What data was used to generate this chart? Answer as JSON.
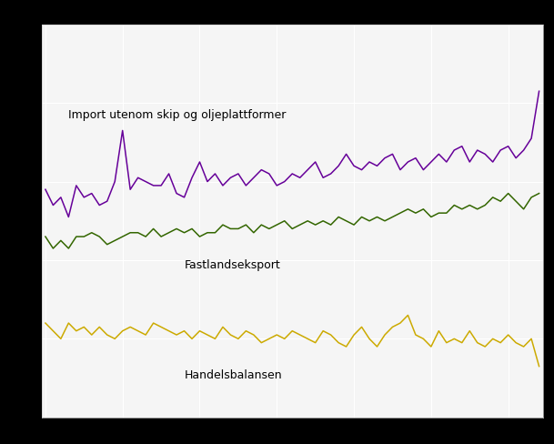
{
  "background_color": "#000000",
  "plot_bg_color": "#f5f5f5",
  "grid_color": "#ffffff",
  "label_import": "Import utenom skip og oljeplattformer",
  "label_export": "Fastlandseksport",
  "label_balance": "Handelsbalansen",
  "color_import": "#660099",
  "color_export": "#336600",
  "color_balance": "#ccaa00",
  "n_points": 65,
  "ylim": [
    0,
    100
  ],
  "import_values": [
    58,
    54,
    56,
    51,
    59,
    56,
    57,
    54,
    55,
    60,
    73,
    58,
    61,
    60,
    59,
    59,
    62,
    57,
    56,
    61,
    65,
    60,
    62,
    59,
    61,
    62,
    59,
    61,
    63,
    62,
    59,
    60,
    62,
    61,
    63,
    65,
    61,
    62,
    64,
    67,
    64,
    63,
    65,
    64,
    66,
    67,
    63,
    65,
    66,
    63,
    65,
    67,
    65,
    68,
    69,
    65,
    68,
    67,
    65,
    68,
    69,
    66,
    68,
    71,
    83
  ],
  "export_values": [
    46,
    43,
    45,
    43,
    46,
    46,
    47,
    46,
    44,
    45,
    46,
    47,
    47,
    46,
    48,
    46,
    47,
    48,
    47,
    48,
    46,
    47,
    47,
    49,
    48,
    48,
    49,
    47,
    49,
    48,
    49,
    50,
    48,
    49,
    50,
    49,
    50,
    49,
    51,
    50,
    49,
    51,
    50,
    51,
    50,
    51,
    52,
    53,
    52,
    53,
    51,
    52,
    52,
    54,
    53,
    54,
    53,
    54,
    56,
    55,
    57,
    55,
    53,
    56,
    57
  ],
  "balance_values": [
    24,
    22,
    20,
    24,
    22,
    23,
    21,
    23,
    21,
    20,
    22,
    23,
    22,
    21,
    24,
    23,
    22,
    21,
    22,
    20,
    22,
    21,
    20,
    23,
    21,
    20,
    22,
    21,
    19,
    20,
    21,
    20,
    22,
    21,
    20,
    19,
    22,
    21,
    19,
    18,
    21,
    23,
    20,
    18,
    21,
    23,
    24,
    26,
    21,
    20,
    18,
    22,
    19,
    20,
    19,
    22,
    19,
    18,
    20,
    19,
    21,
    19,
    18,
    20,
    13
  ]
}
